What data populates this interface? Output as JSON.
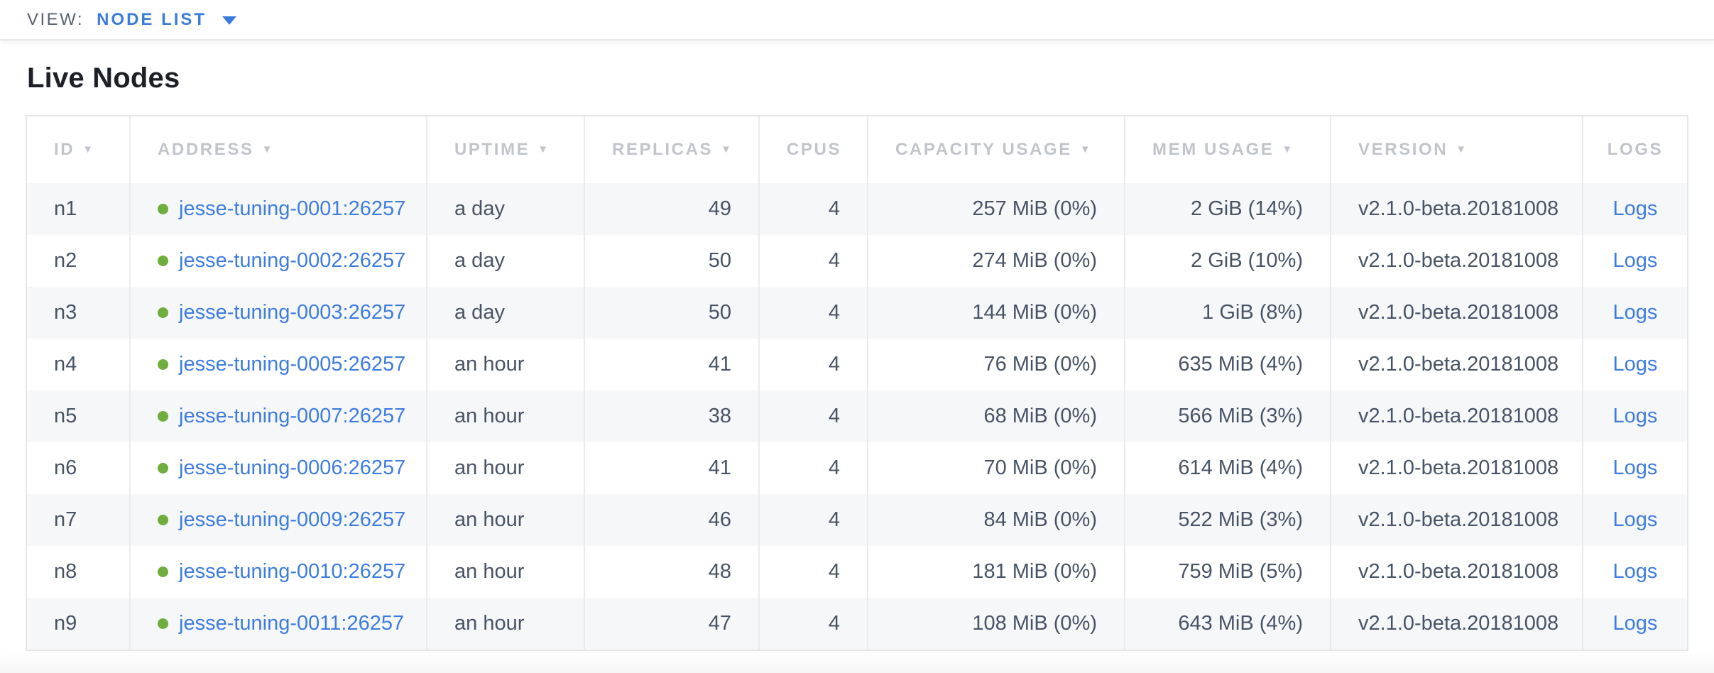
{
  "view_bar": {
    "label": "VIEW:",
    "selected_view": "NODE LIST"
  },
  "page_title": "Live Nodes",
  "table": {
    "sort_glyph": "▼",
    "columns": [
      {
        "key": "id",
        "label": "ID",
        "sortable": true,
        "align": "left"
      },
      {
        "key": "address",
        "label": "ADDRESS",
        "sortable": true,
        "align": "left"
      },
      {
        "key": "uptime",
        "label": "UPTIME",
        "sortable": true,
        "align": "left"
      },
      {
        "key": "replicas",
        "label": "REPLICAS",
        "sortable": true,
        "align": "right"
      },
      {
        "key": "cpus",
        "label": "CPUS",
        "sortable": false,
        "align": "right"
      },
      {
        "key": "capacity",
        "label": "CAPACITY USAGE",
        "sortable": true,
        "align": "right"
      },
      {
        "key": "mem",
        "label": "MEM USAGE",
        "sortable": true,
        "align": "right"
      },
      {
        "key": "version",
        "label": "VERSION",
        "sortable": true,
        "align": "left"
      },
      {
        "key": "logs",
        "label": "LOGS",
        "sortable": false,
        "align": "center"
      }
    ],
    "rows": [
      {
        "id": "n1",
        "address": "jesse-tuning-0001:26257",
        "status": "live",
        "uptime": "a day",
        "replicas": "49",
        "cpus": "4",
        "capacity": "257 MiB (0%)",
        "mem": "2 GiB (14%)",
        "version": "v2.1.0-beta.20181008",
        "logs": "Logs"
      },
      {
        "id": "n2",
        "address": "jesse-tuning-0002:26257",
        "status": "live",
        "uptime": "a day",
        "replicas": "50",
        "cpus": "4",
        "capacity": "274 MiB (0%)",
        "mem": "2 GiB (10%)",
        "version": "v2.1.0-beta.20181008",
        "logs": "Logs"
      },
      {
        "id": "n3",
        "address": "jesse-tuning-0003:26257",
        "status": "live",
        "uptime": "a day",
        "replicas": "50",
        "cpus": "4",
        "capacity": "144 MiB (0%)",
        "mem": "1 GiB (8%)",
        "version": "v2.1.0-beta.20181008",
        "logs": "Logs"
      },
      {
        "id": "n4",
        "address": "jesse-tuning-0005:26257",
        "status": "live",
        "uptime": "an hour",
        "replicas": "41",
        "cpus": "4",
        "capacity": "76 MiB (0%)",
        "mem": "635 MiB (4%)",
        "version": "v2.1.0-beta.20181008",
        "logs": "Logs"
      },
      {
        "id": "n5",
        "address": "jesse-tuning-0007:26257",
        "status": "live",
        "uptime": "an hour",
        "replicas": "38",
        "cpus": "4",
        "capacity": "68 MiB (0%)",
        "mem": "566 MiB (3%)",
        "version": "v2.1.0-beta.20181008",
        "logs": "Logs"
      },
      {
        "id": "n6",
        "address": "jesse-tuning-0006:26257",
        "status": "live",
        "uptime": "an hour",
        "replicas": "41",
        "cpus": "4",
        "capacity": "70 MiB (0%)",
        "mem": "614 MiB (4%)",
        "version": "v2.1.0-beta.20181008",
        "logs": "Logs"
      },
      {
        "id": "n7",
        "address": "jesse-tuning-0009:26257",
        "status": "live",
        "uptime": "an hour",
        "replicas": "46",
        "cpus": "4",
        "capacity": "84 MiB (0%)",
        "mem": "522 MiB (3%)",
        "version": "v2.1.0-beta.20181008",
        "logs": "Logs"
      },
      {
        "id": "n8",
        "address": "jesse-tuning-0010:26257",
        "status": "live",
        "uptime": "an hour",
        "replicas": "48",
        "cpus": "4",
        "capacity": "181 MiB (0%)",
        "mem": "759 MiB (5%)",
        "version": "v2.1.0-beta.20181008",
        "logs": "Logs"
      },
      {
        "id": "n9",
        "address": "jesse-tuning-0011:26257",
        "status": "live",
        "uptime": "an hour",
        "replicas": "47",
        "cpus": "4",
        "capacity": "108 MiB (0%)",
        "mem": "643 MiB (4%)",
        "version": "v2.1.0-beta.20181008",
        "logs": "Logs"
      }
    ]
  },
  "colors": {
    "link_blue": "#3d7ce0",
    "accent_blue": "#3b7cdd",
    "live_dot_green": "#6fae3e",
    "header_gray": "#c1c5cb",
    "cell_text": "#485366",
    "row_stripe": "#f6f7f9"
  }
}
